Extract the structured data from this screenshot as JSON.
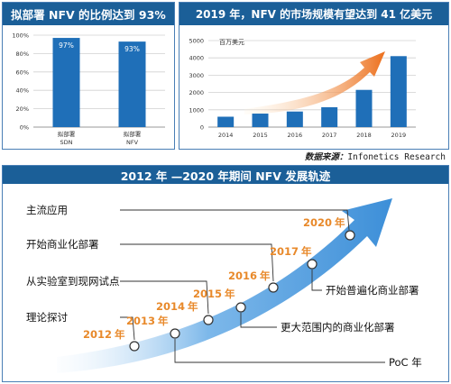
{
  "chart_data": [
    {
      "type": "bar",
      "title": "拟部署 NFV 的比例达到 93%",
      "categories": [
        "拟部署 SDN",
        "拟部署 NFV"
      ],
      "category_lines": [
        [
          "拟部署",
          "SDN"
        ],
        [
          "拟部署",
          "NFV"
        ]
      ],
      "values": [
        97,
        93
      ],
      "data_labels": [
        "97%",
        "93%"
      ],
      "yticks": [
        "0%",
        "20%",
        "40%",
        "60%",
        "80%",
        "100%"
      ],
      "ylim": [
        0,
        100
      ],
      "grid": true,
      "color": "#1f6fb8"
    },
    {
      "type": "bar",
      "title": "2019 年，NFV 的市场规模有望达到 41 亿美元",
      "unit_label": "百万美元",
      "categories": [
        "2014",
        "2015",
        "2016",
        "2017",
        "2018",
        "2019"
      ],
      "values": [
        600,
        780,
        900,
        1150,
        2150,
        4100
      ],
      "yticks": [
        "0",
        "1000",
        "2000",
        "3000",
        "4000",
        "5000"
      ],
      "ylim": [
        0,
        5000
      ],
      "grid": true,
      "color": "#1f6fb8"
    }
  ],
  "source": {
    "label": "数据来源：",
    "text": "Infonetics Research"
  },
  "timeline": {
    "title": "2012 年 —2020 年期间 NFV 发展轨迹",
    "years": [
      {
        "num": "2012",
        "suffix": "年"
      },
      {
        "num": "2013",
        "suffix": "年"
      },
      {
        "num": "2014",
        "suffix": "年"
      },
      {
        "num": "2015",
        "suffix": "年"
      },
      {
        "num": "2016",
        "suffix": "年"
      },
      {
        "num": "2017",
        "suffix": "年"
      },
      {
        "num": "2020",
        "suffix": "年"
      }
    ],
    "left_labels": [
      "主流应用",
      "开始商业化部署",
      "从实验室到现网试点",
      "理论探讨"
    ],
    "right_labels": [
      "开始普遍化商业部署",
      "更大范围内的商业化部署",
      "PoC 年"
    ],
    "colors": {
      "arrow": "#3d8fd8",
      "year": "#e8892a",
      "header": "#1b5f98"
    }
  }
}
